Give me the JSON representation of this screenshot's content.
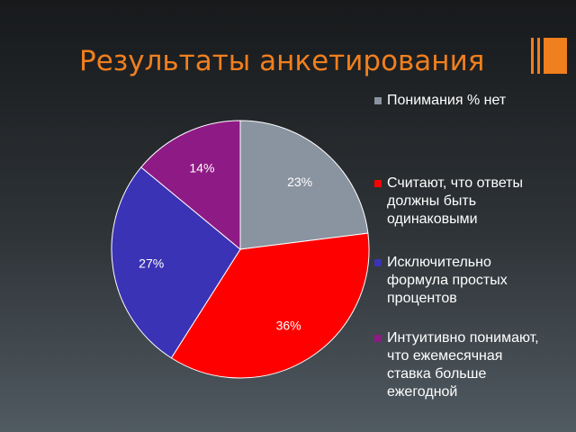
{
  "slide": {
    "title": "Результаты анкетирования",
    "accent_color": "#f07f1e"
  },
  "chart_data": {
    "type": "pie",
    "title": "",
    "legend_position": "right",
    "start_angle_deg": 0,
    "direction": "clockwise",
    "slices": [
      {
        "label": "Понимания % нет",
        "legend_text": "Понимания % нет",
        "value": 23,
        "value_label": "23%",
        "color": "#8a93a0"
      },
      {
        "label": "Считают, что ответы должны быть одинаковыми",
        "legend_text": "Считают, что ответы\nдолжны быть\nодинаковыми",
        "value": 36,
        "value_label": "36%",
        "color": "#ff0000"
      },
      {
        "label": "Исключительно формула простых процентов",
        "legend_text": "Исключительно\nформула простых\nпроцентов",
        "value": 27,
        "value_label": "27%",
        "color": "#3b33b5"
      },
      {
        "label": "Интуитивно понимают, что ежемесячная ставка больше ежегодной",
        "legend_text": "Интуитивно понимают,\nчто ежемесячная\nставка больше\nежегодной",
        "value": 14,
        "value_label": "14%",
        "color": "#8e1a85"
      }
    ]
  }
}
